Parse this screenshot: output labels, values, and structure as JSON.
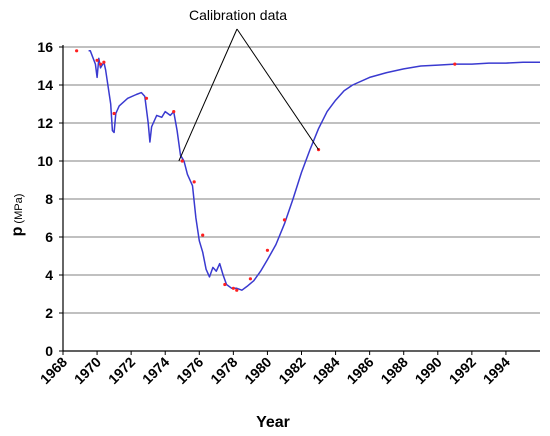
{
  "chart_data": {
    "type": "line",
    "xlabel": "Year",
    "ylabel": "p",
    "ylabel_unit": "(MPa)",
    "xlim": [
      1968,
      1996
    ],
    "ylim": [
      0,
      16
    ],
    "x_ticks": [
      "1968",
      "1970",
      "1972",
      "1974",
      "1976",
      "1978",
      "1980",
      "1982",
      "1984",
      "1986",
      "1988",
      "1990",
      "1992",
      "1994"
    ],
    "y_ticks": [
      "0",
      "2",
      "4",
      "6",
      "8",
      "10",
      "12",
      "14",
      "16"
    ],
    "grid": "horizontal",
    "annotation": {
      "text": "Calibration data",
      "points_to": [
        [
          1974.8,
          10.0
        ],
        [
          1983.0,
          10.6
        ]
      ]
    },
    "colors": {
      "line": "#3a3ad0",
      "points": "#ff2020",
      "grid": "#808080"
    },
    "series": [
      {
        "style": "line",
        "points": [
          [
            1969.5,
            15.8
          ],
          [
            1969.6,
            15.8
          ],
          [
            1969.9,
            15.1
          ],
          [
            1970.0,
            14.4
          ],
          [
            1970.1,
            15.4
          ],
          [
            1970.2,
            14.9
          ],
          [
            1970.4,
            15.2
          ],
          [
            1970.5,
            14.8
          ],
          [
            1970.6,
            14.2
          ],
          [
            1970.8,
            13.0
          ],
          [
            1970.9,
            11.6
          ],
          [
            1971.0,
            11.5
          ],
          [
            1971.1,
            12.5
          ],
          [
            1971.3,
            12.9
          ],
          [
            1971.8,
            13.3
          ],
          [
            1972.3,
            13.5
          ],
          [
            1972.6,
            13.6
          ],
          [
            1972.8,
            13.4
          ],
          [
            1973.0,
            12.0
          ],
          [
            1973.1,
            11.0
          ],
          [
            1973.2,
            11.8
          ],
          [
            1973.3,
            12.0
          ],
          [
            1973.5,
            12.4
          ],
          [
            1973.8,
            12.3
          ],
          [
            1974.0,
            12.6
          ],
          [
            1974.3,
            12.4
          ],
          [
            1974.5,
            12.6
          ],
          [
            1974.7,
            11.6
          ],
          [
            1974.9,
            10.3
          ],
          [
            1975.1,
            10.0
          ],
          [
            1975.3,
            9.3
          ],
          [
            1975.6,
            8.7
          ],
          [
            1975.8,
            7.0
          ],
          [
            1976.0,
            5.8
          ],
          [
            1976.2,
            5.2
          ],
          [
            1976.4,
            4.3
          ],
          [
            1976.6,
            3.9
          ],
          [
            1976.8,
            4.4
          ],
          [
            1977.0,
            4.2
          ],
          [
            1977.2,
            4.6
          ],
          [
            1977.4,
            4.0
          ],
          [
            1977.6,
            3.5
          ],
          [
            1977.9,
            3.3
          ],
          [
            1978.2,
            3.3
          ],
          [
            1978.5,
            3.2
          ],
          [
            1978.8,
            3.4
          ],
          [
            1979.2,
            3.7
          ],
          [
            1979.6,
            4.2
          ],
          [
            1980.0,
            4.8
          ],
          [
            1980.5,
            5.6
          ],
          [
            1981.0,
            6.7
          ],
          [
            1981.5,
            8.0
          ],
          [
            1982.0,
            9.4
          ],
          [
            1982.5,
            10.6
          ],
          [
            1983.0,
            11.7
          ],
          [
            1983.5,
            12.6
          ],
          [
            1984.0,
            13.2
          ],
          [
            1984.5,
            13.7
          ],
          [
            1985.0,
            14.0
          ],
          [
            1986.0,
            14.4
          ],
          [
            1987.0,
            14.65
          ],
          [
            1988.0,
            14.85
          ],
          [
            1989.0,
            15.0
          ],
          [
            1990.0,
            15.05
          ],
          [
            1991.0,
            15.1
          ],
          [
            1992.0,
            15.1
          ],
          [
            1993.0,
            15.15
          ],
          [
            1994.0,
            15.15
          ],
          [
            1995.0,
            15.2
          ],
          [
            1996.0,
            15.2
          ]
        ]
      },
      {
        "style": "markers",
        "points": [
          [
            1968.8,
            15.8
          ],
          [
            1970.0,
            15.3
          ],
          [
            1970.2,
            15.1
          ],
          [
            1970.4,
            15.2
          ],
          [
            1971.0,
            12.5
          ],
          [
            1972.9,
            13.3
          ],
          [
            1974.5,
            12.6
          ],
          [
            1975.0,
            10.0
          ],
          [
            1975.7,
            8.9
          ],
          [
            1976.2,
            6.1
          ],
          [
            1977.5,
            3.5
          ],
          [
            1978.0,
            3.3
          ],
          [
            1978.2,
            3.2
          ],
          [
            1979.0,
            3.8
          ],
          [
            1980.0,
            5.3
          ],
          [
            1981.0,
            6.9
          ],
          [
            1983.0,
            10.6
          ],
          [
            1991.0,
            15.1
          ]
        ]
      }
    ]
  }
}
